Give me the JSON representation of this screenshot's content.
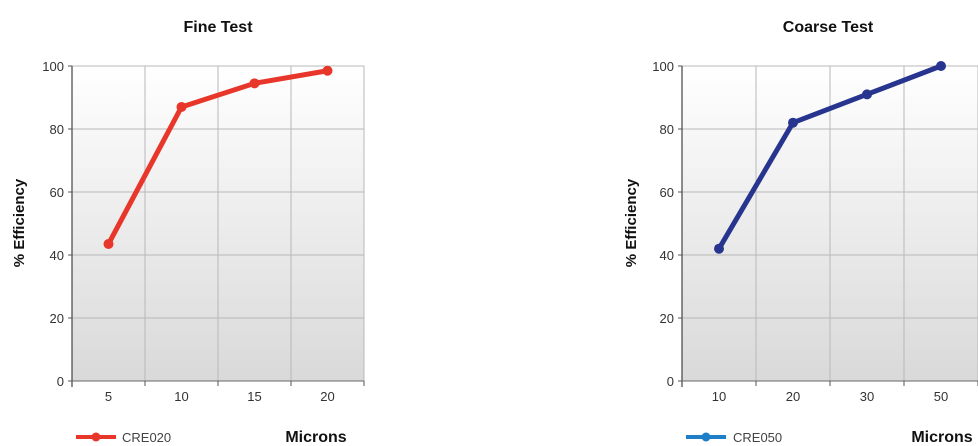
{
  "chart_data": [
    {
      "type": "line",
      "title": "Fine Test",
      "xlabel": "Microns",
      "ylabel": "% Efficiency",
      "categories": [
        "5",
        "10",
        "15",
        "20"
      ],
      "series": [
        {
          "name": "CRE020",
          "values": [
            43.5,
            87,
            94.5,
            98.5
          ],
          "color": "#e8372a"
        }
      ],
      "ylim": [
        0,
        100
      ],
      "yticks": [
        "0",
        "20",
        "40",
        "60",
        "80",
        "100"
      ],
      "grid": true,
      "legend": "bottom-left"
    },
    {
      "type": "line",
      "title": "Coarse Test",
      "xlabel": "Microns",
      "ylabel": "% Efficiency",
      "categories": [
        "10",
        "20",
        "30",
        "50"
      ],
      "series": [
        {
          "name": "CRE050",
          "values": [
            42,
            82,
            91,
            100
          ],
          "color": "#27358f",
          "legend_color": "#1e7fc8"
        }
      ],
      "ylim": [
        0,
        100
      ],
      "yticks": [
        "0",
        "20",
        "40",
        "60",
        "80",
        "100"
      ],
      "grid": true,
      "legend": "bottom-left"
    }
  ]
}
